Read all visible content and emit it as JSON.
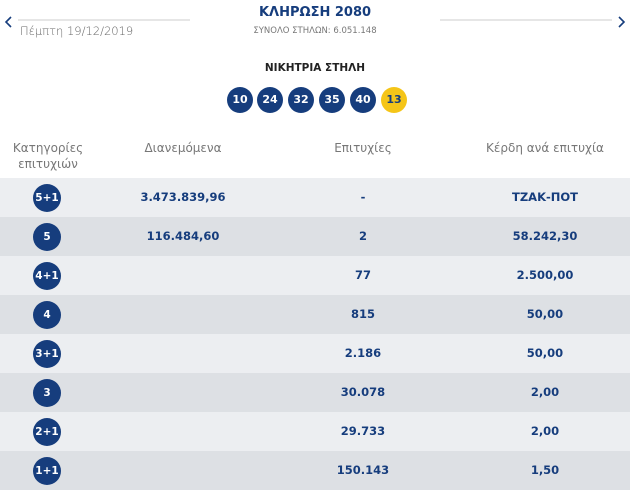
{
  "header": {
    "date": "Πέμπτη 19/12/2019",
    "title": "ΚΛΗΡΩΣΗ 2080",
    "subtitle": "ΣΥΝΟΛΟ ΣΤΗΛΩΝ: 6.051.148"
  },
  "winning": {
    "label": "ΝΙΚΗΤΡΙΑ ΣΤΗΛΗ",
    "numbers": [
      "10",
      "24",
      "32",
      "35",
      "40"
    ],
    "joker": "13"
  },
  "table": {
    "columns": [
      "Κατηγορίες επιτυχιών",
      "Διανεμόμενα",
      "Επιτυχίες",
      "Κέρδη ανά επιτυχία"
    ],
    "rows": [
      {
        "category": "5+1",
        "distributed": "3.473.839,96",
        "winners": "-",
        "prize": "ΤΖΑΚ-ΠΟΤ"
      },
      {
        "category": "5",
        "distributed": "116.484,60",
        "winners": "2",
        "prize": "58.242,30"
      },
      {
        "category": "4+1",
        "winners": "77",
        "prize": "2.500,00"
      },
      {
        "category": "4",
        "winners": "815",
        "prize": "50,00"
      },
      {
        "category": "3+1",
        "winners": "2.186",
        "prize": "50,00"
      },
      {
        "category": "3",
        "winners": "30.078",
        "prize": "2,00"
      },
      {
        "category": "2+1",
        "winners": "29.733",
        "prize": "2,00"
      },
      {
        "category": "1+1",
        "winners": "150.143",
        "prize": "1,50"
      }
    ]
  }
}
